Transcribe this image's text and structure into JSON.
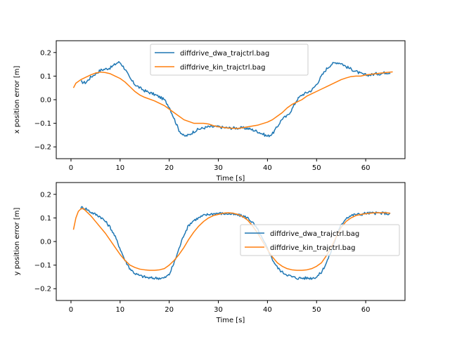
{
  "chart_data": [
    {
      "type": "line",
      "title": "",
      "xlabel": "Time [s]",
      "ylabel": "x position error [m]",
      "xlim": [
        -3,
        68
      ],
      "ylim": [
        -0.25,
        0.25
      ],
      "xticks": [
        0,
        10,
        20,
        30,
        40,
        50,
        60
      ],
      "xticklabels": [
        "0",
        "10",
        "20",
        "30",
        "40",
        "50",
        "60"
      ],
      "yticks": [
        -0.2,
        -0.1,
        0.0,
        0.1,
        0.2
      ],
      "yticklabels": [
        "−0.2",
        "−0.1",
        "0.0",
        "0.1",
        "0.2"
      ],
      "legend_position": "upper-center",
      "series": [
        {
          "name": "diffdrive_dwa_trajctrl.bag",
          "color": "#1f77b4",
          "noisy": true,
          "x": [
            2.0,
            3.0,
            4.0,
            5.0,
            6.0,
            7.0,
            8.0,
            9.0,
            9.5,
            10.0,
            11.0,
            12.0,
            13.0,
            14.0,
            15.0,
            16.0,
            17.0,
            18.0,
            19.0,
            20.0,
            21.0,
            22.0,
            23.0,
            24.0,
            25.0,
            26.0,
            27.0,
            28.0,
            29.0,
            30.0,
            31.0,
            32.0,
            33.0,
            34.0,
            35.0,
            36.0,
            37.0,
            38.0,
            39.0,
            40.0,
            41.0,
            42.0,
            43.0,
            44.0,
            45.0,
            46.0,
            47.0,
            48.0,
            49.0,
            50.0,
            51.0,
            52.0,
            53.0,
            54.0,
            55.0,
            56.0,
            57.0,
            58.0,
            59.0,
            60.0,
            61.0,
            62.0,
            63.0,
            64.0,
            65.0
          ],
          "y": [
            0.075,
            0.072,
            0.095,
            0.11,
            0.125,
            0.13,
            0.135,
            0.15,
            0.158,
            0.158,
            0.13,
            0.09,
            0.065,
            0.05,
            0.038,
            0.03,
            0.022,
            0.012,
            0.0,
            -0.03,
            -0.08,
            -0.13,
            -0.155,
            -0.15,
            -0.135,
            -0.125,
            -0.12,
            -0.115,
            -0.115,
            -0.115,
            -0.118,
            -0.12,
            -0.12,
            -0.12,
            -0.12,
            -0.122,
            -0.128,
            -0.135,
            -0.145,
            -0.155,
            -0.145,
            -0.115,
            -0.08,
            -0.07,
            -0.04,
            0.0,
            0.02,
            0.03,
            0.04,
            0.065,
            0.1,
            0.13,
            0.15,
            0.158,
            0.155,
            0.14,
            0.13,
            0.12,
            0.11,
            0.105,
            0.105,
            0.11,
            0.11,
            0.115,
            0.115
          ]
        },
        {
          "name": "diffdrive_kin_trajctrl.bag",
          "color": "#ff7f0e",
          "noisy": false,
          "x": [
            0.5,
            1.0,
            2.0,
            3.0,
            4.0,
            5.0,
            6.0,
            7.0,
            8.0,
            9.0,
            10.0,
            11.0,
            12.0,
            13.0,
            14.0,
            15.0,
            17.0,
            19.0,
            21.0,
            23.0,
            25.0,
            26.0,
            27.0,
            28.0,
            29.0,
            30.0,
            32.0,
            34.0,
            36.0,
            38.0,
            40.0,
            41.0,
            42.0,
            43.0,
            44.0,
            45.0,
            46.0,
            47.0,
            48.0,
            49.0,
            50.0,
            51.0,
            52.0,
            53.0,
            54.0,
            55.0,
            56.0,
            57.0,
            58.0,
            59.0,
            60.0,
            62.0,
            64.0,
            65.5
          ],
          "y": [
            0.05,
            0.07,
            0.085,
            0.095,
            0.105,
            0.113,
            0.117,
            0.115,
            0.11,
            0.1,
            0.09,
            0.075,
            0.055,
            0.035,
            0.02,
            0.01,
            -0.005,
            -0.025,
            -0.055,
            -0.085,
            -0.1,
            -0.1,
            -0.1,
            -0.103,
            -0.11,
            -0.115,
            -0.12,
            -0.122,
            -0.115,
            -0.108,
            -0.095,
            -0.085,
            -0.07,
            -0.055,
            -0.035,
            -0.02,
            -0.01,
            0.0,
            0.015,
            0.025,
            0.035,
            0.045,
            0.055,
            0.065,
            0.075,
            0.085,
            0.092,
            0.098,
            0.1,
            0.1,
            0.105,
            0.11,
            0.115,
            0.118
          ]
        }
      ]
    },
    {
      "type": "line",
      "title": "",
      "xlabel": "Time [s]",
      "ylabel": "y position error [m]",
      "xlim": [
        -3,
        68
      ],
      "ylim": [
        -0.25,
        0.25
      ],
      "xticks": [
        0,
        10,
        20,
        30,
        40,
        50,
        60
      ],
      "xticklabels": [
        "0",
        "10",
        "20",
        "30",
        "40",
        "50",
        "60"
      ],
      "yticks": [
        -0.2,
        -0.1,
        0.0,
        0.1,
        0.2
      ],
      "yticklabels": [
        "−0.2",
        "−0.1",
        "0.0",
        "0.1",
        "0.2"
      ],
      "legend_position": "center-right",
      "series": [
        {
          "name": "diffdrive_dwa_trajctrl.bag",
          "color": "#1f77b4",
          "noisy": true,
          "x": [
            2.0,
            3.0,
            4.0,
            5.0,
            6.0,
            7.0,
            8.0,
            9.0,
            10.0,
            11.0,
            12.0,
            13.0,
            14.0,
            15.0,
            16.0,
            17.0,
            18.0,
            19.0,
            20.0,
            21.0,
            22.0,
            23.0,
            24.0,
            25.0,
            26.0,
            27.0,
            28.0,
            29.0,
            30.0,
            31.0,
            32.0,
            33.0,
            34.0,
            35.0,
            36.0,
            37.0,
            38.0,
            39.0,
            40.0,
            41.0,
            42.0,
            43.0,
            44.0,
            45.0,
            46.0,
            47.0,
            48.0,
            49.0,
            50.0,
            51.0,
            52.0,
            53.0,
            54.0,
            55.0,
            56.0,
            57.0,
            58.0,
            59.0,
            60.0,
            61.0,
            62.0,
            63.0,
            64.0,
            65.0
          ],
          "y": [
            0.145,
            0.14,
            0.125,
            0.115,
            0.105,
            0.085,
            0.06,
            0.02,
            -0.03,
            -0.08,
            -0.115,
            -0.135,
            -0.145,
            -0.15,
            -0.155,
            -0.155,
            -0.155,
            -0.155,
            -0.14,
            -0.09,
            -0.03,
            0.03,
            0.07,
            0.09,
            0.1,
            0.11,
            0.115,
            0.118,
            0.12,
            0.118,
            0.118,
            0.115,
            0.112,
            0.108,
            0.1,
            0.08,
            0.05,
            0.01,
            -0.03,
            -0.075,
            -0.11,
            -0.13,
            -0.14,
            -0.15,
            -0.155,
            -0.155,
            -0.155,
            -0.155,
            -0.15,
            -0.13,
            -0.09,
            -0.04,
            0.02,
            0.07,
            0.1,
            0.11,
            0.115,
            0.115,
            0.12,
            0.12,
            0.12,
            0.12,
            0.12,
            0.115
          ]
        },
        {
          "name": "diffdrive_kin_trajctrl.bag",
          "color": "#ff7f0e",
          "noisy": false,
          "x": [
            0.5,
            1.0,
            1.5,
            2.0,
            2.5,
            3.0,
            4.0,
            5.0,
            6.0,
            7.0,
            8.0,
            9.0,
            10.0,
            11.0,
            12.0,
            13.0,
            14.0,
            15.0,
            16.0,
            17.0,
            18.0,
            19.0,
            20.0,
            21.0,
            22.0,
            23.0,
            24.0,
            25.0,
            26.0,
            27.0,
            28.0,
            29.0,
            30.0,
            31.0,
            32.0,
            33.0,
            34.0,
            35.0,
            36.0,
            37.0,
            38.0,
            39.0,
            40.0,
            41.0,
            42.0,
            43.0,
            44.0,
            45.0,
            46.0,
            47.0,
            48.0,
            49.0,
            50.0,
            51.0,
            52.0,
            53.0,
            54.0,
            55.0,
            56.0,
            57.0,
            58.0,
            59.0,
            60.0,
            61.0,
            62.0,
            63.0,
            64.0,
            65.0
          ],
          "y": [
            0.05,
            0.1,
            0.128,
            0.138,
            0.14,
            0.13,
            0.11,
            0.085,
            0.06,
            0.035,
            0.005,
            -0.025,
            -0.055,
            -0.08,
            -0.1,
            -0.11,
            -0.117,
            -0.12,
            -0.122,
            -0.122,
            -0.12,
            -0.115,
            -0.1,
            -0.08,
            -0.055,
            -0.025,
            0.01,
            0.04,
            0.065,
            0.085,
            0.1,
            0.11,
            0.115,
            0.12,
            0.122,
            0.12,
            0.115,
            0.105,
            0.09,
            0.065,
            0.035,
            0.0,
            -0.035,
            -0.065,
            -0.09,
            -0.105,
            -0.115,
            -0.12,
            -0.122,
            -0.122,
            -0.12,
            -0.115,
            -0.105,
            -0.09,
            -0.06,
            -0.025,
            0.02,
            0.06,
            0.085,
            0.1,
            0.11,
            0.115,
            0.118,
            0.12,
            0.122,
            0.122,
            0.122,
            0.12
          ]
        }
      ]
    }
  ]
}
